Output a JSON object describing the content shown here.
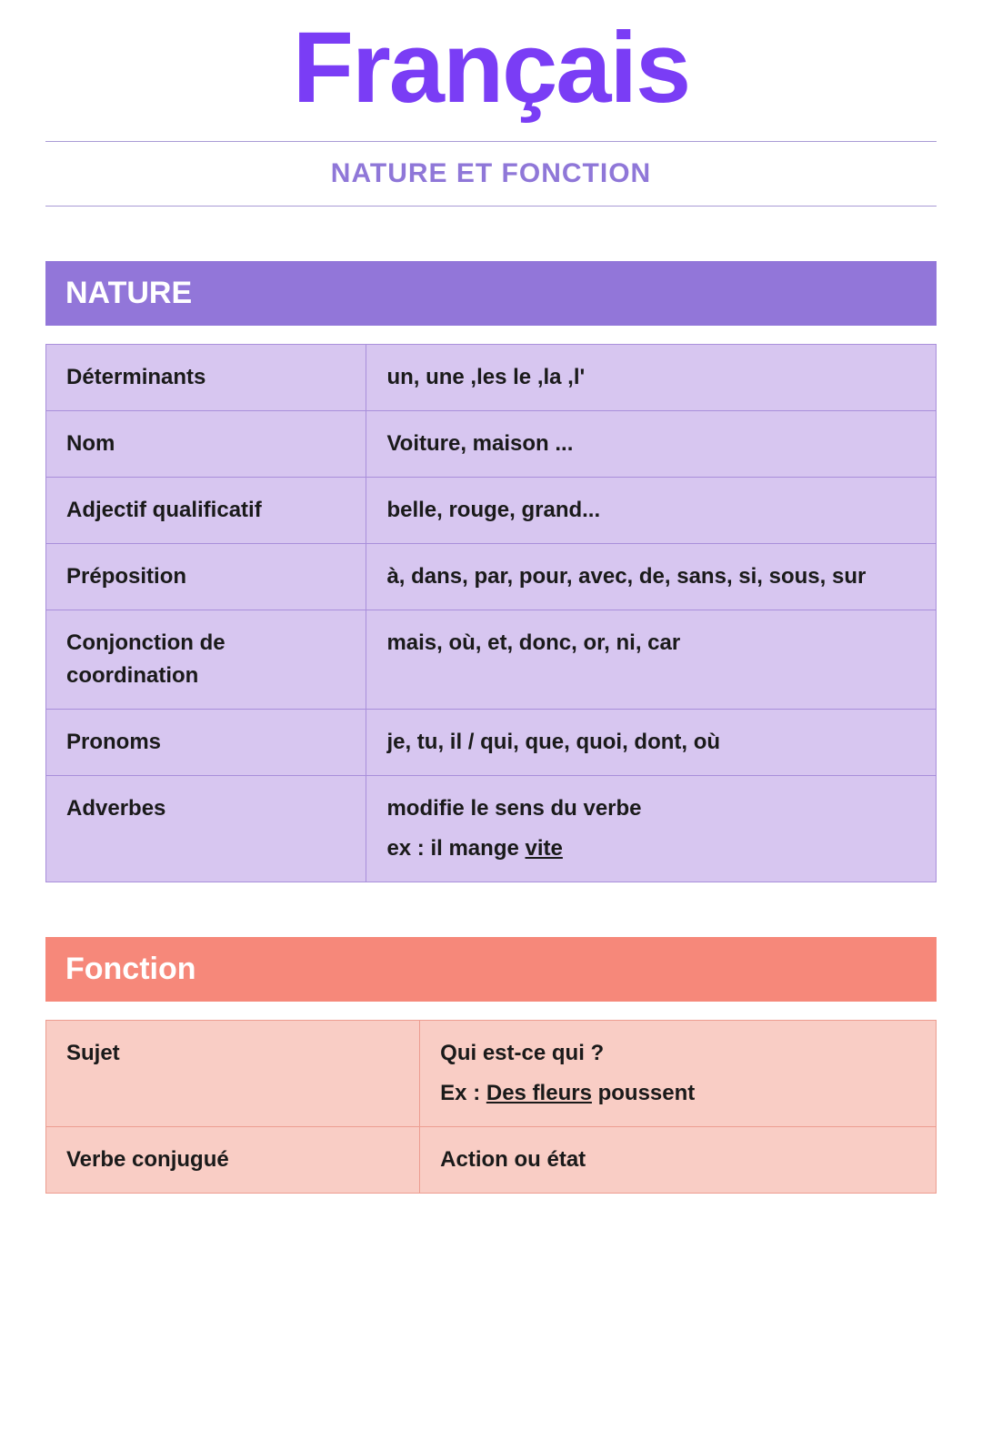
{
  "colors": {
    "title": "#7a3df5",
    "subtitle": "#8f77d8",
    "rule": "#a99bd6",
    "nature_header_bg": "#9276d9",
    "nature_cell_bg": "#d7c6f0",
    "nature_border": "#a98fdb",
    "fonction_header_bg": "#f6887a",
    "fonction_cell_bg": "#f9cdc5",
    "fonction_border": "#ed9d91",
    "text": "#1a1a1a",
    "white": "#ffffff"
  },
  "header": {
    "title": "Français",
    "subtitle": "NATURE ET FONCTION"
  },
  "nature": {
    "heading": "NATURE",
    "rows": [
      {
        "label": "Déterminants",
        "lines": [
          "un, une ,les le ,la ,l'"
        ]
      },
      {
        "label": "Nom",
        "lines": [
          "Voiture, maison ..."
        ]
      },
      {
        "label": "Adjectif qualificatif",
        "lines": [
          "belle, rouge, grand..."
        ]
      },
      {
        "label": "Préposition",
        "lines": [
          "à, dans, par, pour, avec, de, sans, si, sous, sur"
        ]
      },
      {
        "label": "Conjonction de coordination",
        "lines": [
          "mais, où, et, donc, or, ni, car"
        ]
      },
      {
        "label": "Pronoms",
        "lines": [
          "je, tu, il / qui, que, quoi, dont, où"
        ]
      },
      {
        "label": "Adverbes",
        "lines": [
          "modifie le sens du verbe"
        ],
        "example": {
          "prefix": "ex : il mange ",
          "underlined": "vite",
          "suffix": ""
        }
      }
    ]
  },
  "fonction": {
    "heading": "Fonction",
    "rows": [
      {
        "label": "Sujet",
        "lines": [
          "Qui est-ce qui ?"
        ],
        "example": {
          "prefix": "Ex : ",
          "underlined": "Des fleurs",
          "suffix": " poussent"
        }
      },
      {
        "label": "Verbe conjugué",
        "lines": [
          "Action ou état"
        ]
      }
    ]
  }
}
